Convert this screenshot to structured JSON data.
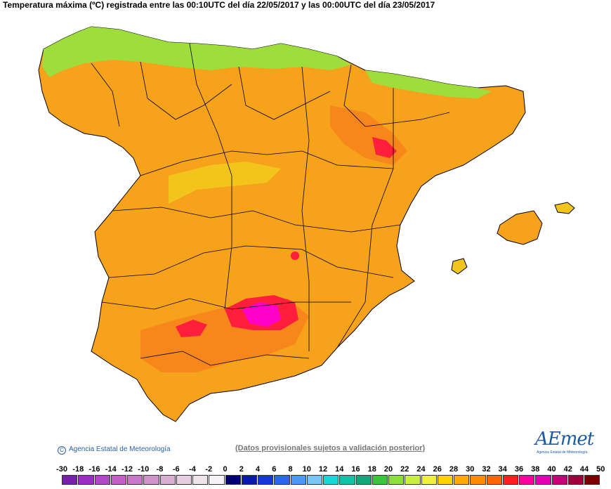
{
  "title": "Temperatura máxima (ºC) registrada entre las 00:10UTC del día 22/05/2017 y las 00:00UTC del día 23/05/2017",
  "credit": "Agencia Estatal de Meteorología",
  "note": "(Datos provisionales sujetos a validación posterior)",
  "logo": {
    "word": "AEmet",
    "subtitle": "Agencia Estatal de Meteorología"
  },
  "legend": {
    "labels": [
      "-30",
      "-18",
      "-16",
      "-14",
      "-12",
      "-10",
      "-8",
      "-6",
      "-4",
      "-2",
      "0",
      "2",
      "4",
      "6",
      "8",
      "10",
      "12",
      "14",
      "16",
      "18",
      "20",
      "22",
      "24",
      "26",
      "28",
      "30",
      "32",
      "34",
      "36",
      "38",
      "40",
      "42",
      "44",
      "50"
    ],
    "colors": [
      "#7a1fa8",
      "#9a2ec2",
      "#b146c8",
      "#c25fc9",
      "#c978c9",
      "#cf92cb",
      "#d9aed3",
      "#e6cde0",
      "#efe3ea",
      "#f6f1f4",
      "#00006e",
      "#0a1aa8",
      "#1438d8",
      "#2a66ee",
      "#4d98f4",
      "#7cc4f6",
      "#15d8d8",
      "#10c3a8",
      "#10a87a",
      "#3cc43c",
      "#8be03c",
      "#c8f03c",
      "#f0f03c",
      "#ffd200",
      "#ffaa00",
      "#ff8c00",
      "#ff6600",
      "#ff1e1e",
      "#ff00a0",
      "#e600b4",
      "#c80078",
      "#a0003c",
      "#7a0000"
    ]
  },
  "regions": {
    "peninsula": "#f7a21b",
    "north_coast": "#9fdd3c",
    "hot_core": "#ff1e3c",
    "very_hot": "#ff00c8",
    "warm_zone": "#f7861b",
    "mild_zone": "#f3c51c"
  }
}
